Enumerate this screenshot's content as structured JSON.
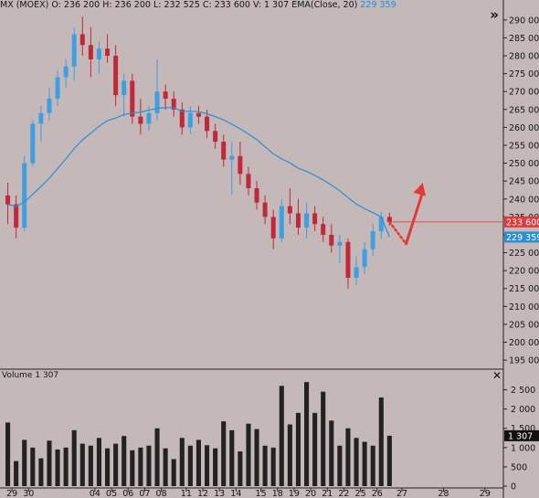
{
  "header": {
    "symbol": "MX (MOEX)",
    "open_label": "O:",
    "open": "236 200",
    "high_label": "H:",
    "high": "236 200",
    "low_label": "L:",
    "low": "232 525",
    "close_label": "C:",
    "close": "233 600",
    "volume_label": "V:",
    "volume": "1 307",
    "ema_label": "EMA(Close, 20)",
    "ema_value": "229 359"
  },
  "volume_panel": {
    "label": "Volume",
    "value": "1 307"
  },
  "icons": {
    "more": "double-chevron-right-icon",
    "close": "close-icon"
  },
  "colors": {
    "background": "#c4b8b8",
    "up": "#3f9fe0",
    "down": "#c0293a",
    "ema": "#2a8fd6",
    "price_line": "#e05050",
    "price_tag": "#e0383c",
    "ema_tag": "#2a8fd6",
    "arrow": "#e53935",
    "volume": "#222222"
  },
  "chart_data": {
    "type": "candlestick",
    "price_axis": {
      "ticks": [
        195000,
        200000,
        205000,
        210000,
        215000,
        220000,
        225000,
        230000,
        235000,
        240000,
        245000,
        250000,
        255000,
        260000,
        265000,
        270000,
        275000,
        280000,
        285000,
        290000
      ],
      "tick_labels": [
        "195 000",
        "200 000",
        "205 000",
        "210 000",
        "215 000",
        "220 000",
        "225 000",
        "230 000",
        "235 000",
        "240 000",
        "245 000",
        "250 000",
        "255 000",
        "260 000",
        "265 000",
        "270 000",
        "275 000",
        "280 000",
        "285 000",
        "290 000"
      ],
      "range": [
        193500,
        292000
      ]
    },
    "volume_axis": {
      "ticks": [
        0,
        500,
        1000,
        1500,
        2000,
        2500
      ],
      "tick_labels": [
        "0",
        "500",
        "1 000",
        "1 500",
        "2 000",
        "2 500"
      ],
      "range": [
        0,
        2750
      ]
    },
    "date_labels": [
      "29",
      "30",
      "04",
      "05",
      "06",
      "07",
      "08",
      "11",
      "12",
      "13",
      "14",
      "15",
      "18",
      "19",
      "20",
      "21",
      "22",
      "25",
      "26",
      "27",
      "28",
      "29"
    ],
    "date_ticks": [
      0.5,
      2.5,
      10.5,
      12.5,
      14.5,
      16.5,
      18.5,
      21.5,
      23.5,
      25.5,
      27.5,
      30.5,
      32.5,
      34.5,
      36.5,
      38.5,
      40.5,
      42.5,
      44.5,
      47.5,
      52.5,
      57.5
    ],
    "bar_count": 60,
    "candles": [
      [
        241000,
        244500,
        233000,
        238500
      ],
      [
        238500,
        241000,
        229000,
        232000
      ],
      [
        232000,
        252000,
        231000,
        250000
      ],
      [
        250000,
        262000,
        249000,
        261000
      ],
      [
        261000,
        266000,
        256000,
        264000
      ],
      [
        264000,
        271000,
        262000,
        268000
      ],
      [
        268000,
        276000,
        266000,
        274000
      ],
      [
        274000,
        279000,
        271000,
        277000
      ],
      [
        277000,
        288000,
        273000,
        286000
      ],
      [
        286000,
        291000,
        280000,
        283000
      ],
      [
        283000,
        288000,
        274000,
        279000
      ],
      [
        279000,
        284000,
        275000,
        282000
      ],
      [
        282000,
        286000,
        278000,
        280000
      ],
      [
        280000,
        283000,
        266000,
        269000
      ],
      [
        269000,
        275000,
        263000,
        273000
      ],
      [
        273000,
        275000,
        261000,
        263000
      ],
      [
        263000,
        268000,
        258000,
        261000
      ],
      [
        261000,
        266000,
        259000,
        264000
      ],
      [
        264000,
        279000,
        262000,
        270000
      ],
      [
        270000,
        272000,
        265000,
        268000
      ],
      [
        268000,
        270000,
        263000,
        265000
      ],
      [
        265000,
        267000,
        258000,
        260000
      ],
      [
        260000,
        266000,
        258000,
        264000
      ],
      [
        264000,
        266000,
        261000,
        263000
      ],
      [
        263000,
        265000,
        257000,
        259000
      ],
      [
        259000,
        261000,
        254000,
        256000
      ],
      [
        256000,
        258000,
        249000,
        251000
      ],
      [
        251000,
        256000,
        241000,
        252000
      ],
      [
        252000,
        256000,
        244000,
        247000
      ],
      [
        247000,
        249000,
        241000,
        243000
      ],
      [
        243000,
        245000,
        237000,
        239000
      ],
      [
        239000,
        241000,
        233000,
        235000
      ],
      [
        235000,
        237000,
        226000,
        229000
      ],
      [
        229000,
        240000,
        228000,
        238000
      ],
      [
        238000,
        243000,
        233000,
        236000
      ],
      [
        236000,
        240000,
        230000,
        232000
      ],
      [
        232000,
        239000,
        229000,
        236000
      ],
      [
        236000,
        238000,
        231000,
        233000
      ],
      [
        233000,
        235000,
        228000,
        230000
      ],
      [
        230000,
        233000,
        225000,
        227000
      ],
      [
        227000,
        230000,
        222000,
        228000
      ],
      [
        228000,
        229000,
        215000,
        218000
      ],
      [
        218000,
        224000,
        216000,
        221000
      ],
      [
        221000,
        228000,
        219000,
        226000
      ],
      [
        226000,
        233000,
        224000,
        231000
      ],
      [
        231000,
        236500,
        229000,
        235000
      ],
      [
        235000,
        236200,
        232525,
        233600
      ]
    ],
    "ema": [
      238500,
      237900,
      239200,
      241300,
      243500,
      245800,
      248500,
      251200,
      254100,
      256500,
      258400,
      260300,
      261900,
      262600,
      263600,
      264000,
      264300,
      264800,
      265300,
      265500,
      265500,
      264500,
      264500,
      264400,
      263800,
      263000,
      262100,
      260900,
      259600,
      258100,
      256600,
      254600,
      252600,
      251200,
      250100,
      248600,
      247700,
      246600,
      245300,
      243900,
      242300,
      240400,
      238600,
      237300,
      236200,
      235000,
      229359
    ],
    "volumes": [
      1650,
      650,
      1200,
      1000,
      720,
      1180,
      950,
      1000,
      1450,
      1100,
      1050,
      1250,
      980,
      1100,
      1300,
      930,
      1000,
      1050,
      1500,
      980,
      700,
      1250,
      1050,
      1200,
      1060,
      980,
      1680,
      1450,
      900,
      1620,
      1480,
      1050,
      1000,
      2600,
      1600,
      1900,
      2700,
      1900,
      2450,
      1700,
      1050,
      1500,
      1250,
      1150,
      1050,
      2300,
      1307
    ],
    "volume_colors": [
      "#222222"
    ],
    "last_price_tag": "233 600",
    "ema_tag": "229 359",
    "volume_tag": "1 307",
    "forecast": {
      "dotted_path": [
        [
          46,
          233600
        ],
        [
          48,
          227500
        ]
      ],
      "arrow_from": [
        48,
        227500
      ],
      "arrow_to": [
        50,
        244500
      ]
    }
  }
}
